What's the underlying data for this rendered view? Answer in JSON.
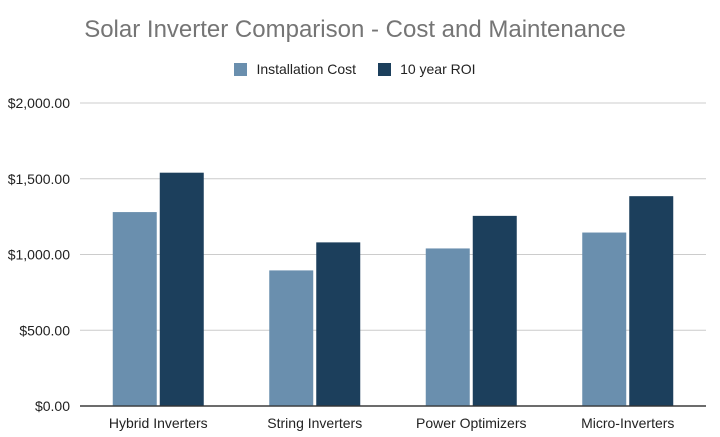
{
  "chart_data": {
    "type": "bar",
    "title": "Solar Inverter Comparison - Cost and Maintenance",
    "xlabel": "",
    "ylabel": "",
    "categories": [
      "Hybrid Inverters",
      "String Inverters",
      "Power Optimizers",
      "Micro-Inverters"
    ],
    "series": [
      {
        "name": "Installation Cost",
        "values": [
          1280,
          895,
          1040,
          1145
        ],
        "color": "#6a8fae"
      },
      {
        "name": "10 year ROI",
        "values": [
          1540,
          1080,
          1255,
          1385
        ],
        "color": "#1c3f5c"
      }
    ],
    "ylim": [
      0,
      2000
    ],
    "yticks": [
      "$0.00",
      "$500.00",
      "$1,000.00",
      "$1,500.00",
      "$2,000.00"
    ],
    "grid": true,
    "legend_position": "top-center"
  }
}
